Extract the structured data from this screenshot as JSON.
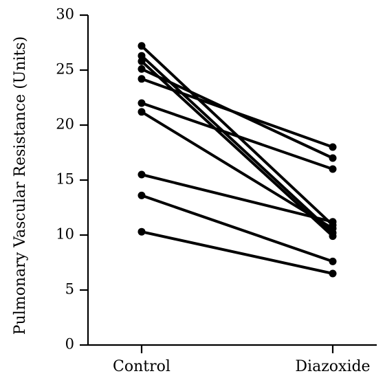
{
  "chart_data": {
    "type": "line",
    "categories": [
      "Control",
      "Diazoxide"
    ],
    "ylabel": "Pulmonary Vascular Resistance (Units)",
    "xlabel": "",
    "ylim": [
      0,
      30
    ],
    "yticks": [
      "0",
      "5",
      "10",
      "15",
      "20",
      "25",
      "30"
    ],
    "grid": false,
    "series": [
      {
        "values": [
          27.2,
          10.9
        ]
      },
      {
        "values": [
          26.3,
          10.2
        ]
      },
      {
        "values": [
          25.1,
          17.0
        ]
      },
      {
        "values": [
          24.2,
          18.0
        ]
      },
      {
        "values": [
          22.0,
          16.0
        ]
      },
      {
        "values": [
          21.2,
          10.6
        ]
      },
      {
        "values": [
          15.5,
          11.2
        ]
      },
      {
        "values": [
          13.6,
          7.6
        ]
      },
      {
        "values": [
          10.3,
          6.5
        ]
      },
      {
        "values": [
          25.8,
          9.9
        ]
      }
    ],
    "colors": {
      "line": "#000000",
      "point": "#000000",
      "axis": "#000000"
    }
  }
}
